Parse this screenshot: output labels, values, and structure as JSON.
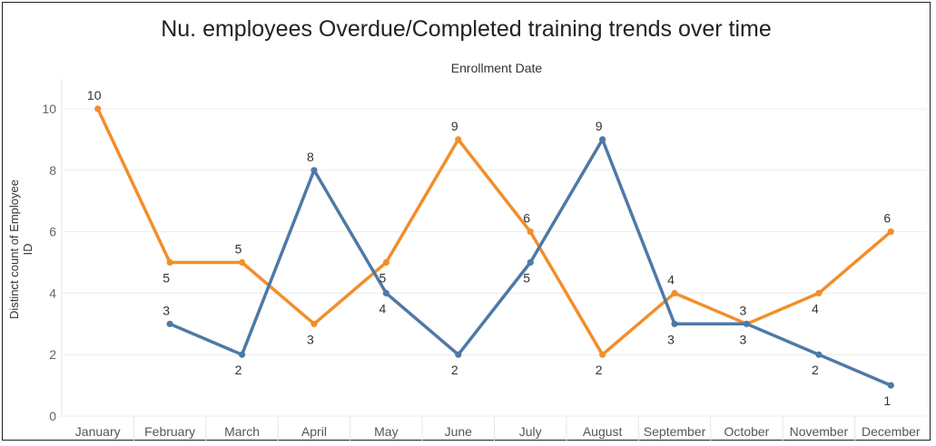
{
  "chart_data": {
    "type": "line",
    "title": "Nu. employees Overdue/Completed training trends over time",
    "x_header": "Enrollment Date",
    "ylabel": "Distinct count of Employee ID",
    "ylim": [
      0,
      11
    ],
    "yticks": [
      0,
      2,
      4,
      6,
      8,
      10
    ],
    "grid": true,
    "categories": [
      "January",
      "February",
      "March",
      "April",
      "May",
      "June",
      "July",
      "August",
      "September",
      "October",
      "November",
      "December"
    ],
    "series": [
      {
        "color": "#f28e2b",
        "values": [
          10,
          5,
          5,
          3,
          5,
          9,
          6,
          2,
          4,
          3,
          4,
          6
        ],
        "label_pos": [
          "above",
          "below",
          "above",
          "below",
          "below",
          "above",
          "above",
          "below",
          "above",
          "above",
          "below",
          "above"
        ]
      },
      {
        "color": "#4e79a7",
        "values": [
          null,
          3,
          2,
          8,
          4,
          2,
          5,
          9,
          3,
          3,
          2,
          1
        ],
        "label_pos": [
          "none",
          "above",
          "below",
          "above",
          "below",
          "below",
          "below",
          "above",
          "below",
          "below",
          "below",
          "below"
        ]
      }
    ]
  }
}
